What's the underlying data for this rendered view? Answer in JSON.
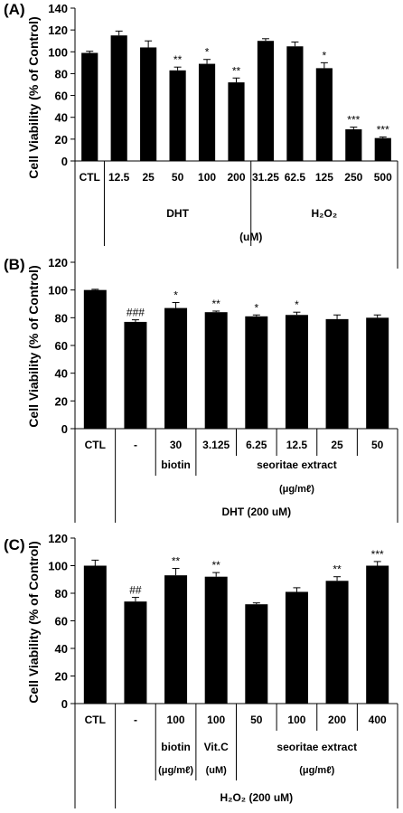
{
  "chart_data": [
    {
      "panel_label": "(A)",
      "type": "bar",
      "ylabel": "Cell Viability (% of Control)",
      "ylim": [
        0,
        140
      ],
      "yticks": [
        0,
        20,
        40,
        60,
        80,
        100,
        120,
        140
      ],
      "grid": false,
      "legend": "none",
      "categories": [
        "CTL",
        "12.5",
        "25",
        "50",
        "100",
        "200",
        "31.25",
        "62.5",
        "125",
        "250",
        "500"
      ],
      "values": [
        99,
        115,
        104,
        83,
        89,
        72,
        110,
        105,
        85,
        29,
        21
      ],
      "errors": [
        1.5,
        4,
        6,
        3,
        4,
        4,
        2,
        4,
        5,
        2,
        1
      ],
      "significance": [
        "",
        "",
        "",
        "**",
        "*",
        "**",
        "",
        "",
        "*",
        "***",
        "***"
      ],
      "groups": [
        {
          "label": "DHT",
          "start": 1,
          "end": 5
        },
        {
          "label": "H₂O₂",
          "start": 6,
          "end": 10
        }
      ],
      "unit_note": "(uM)"
    },
    {
      "panel_label": "(B)",
      "type": "bar",
      "ylabel": "Cell Viability (% of Control)",
      "ylim": [
        0,
        120
      ],
      "yticks": [
        0,
        20,
        40,
        60,
        80,
        100,
        120
      ],
      "grid": false,
      "legend": "none",
      "categories": [
        "CTL",
        "-",
        "30",
        "3.125",
        "6.25",
        "12.5",
        "25",
        "50"
      ],
      "values": [
        100,
        77,
        87,
        84,
        81,
        82,
        79,
        80
      ],
      "errors": [
        0.5,
        1.5,
        4,
        0.8,
        1,
        2,
        3,
        2
      ],
      "significance": [
        "",
        "###",
        "*",
        "**",
        "*",
        "*",
        "",
        ""
      ],
      "sublabels": [
        {
          "label": "biotin",
          "start": 2,
          "end": 2
        },
        {
          "label": "seoritae extract",
          "start": 3,
          "end": 7
        }
      ],
      "unit_note": "(μg/mℓ)",
      "treatment": "DHT (200 uM)"
    },
    {
      "panel_label": "(C)",
      "type": "bar",
      "ylabel": "Cell Viability (% of Control)",
      "ylim": [
        0,
        120
      ],
      "yticks": [
        0,
        20,
        40,
        60,
        80,
        100,
        120
      ],
      "grid": false,
      "legend": "none",
      "categories": [
        "CTL",
        "-",
        "100",
        "100",
        "50",
        "100",
        "200",
        "400"
      ],
      "values": [
        100,
        74,
        93,
        92,
        72,
        81,
        89,
        100
      ],
      "errors": [
        4,
        3,
        5,
        3,
        1,
        3,
        3,
        3
      ],
      "significance": [
        "",
        "##",
        "**",
        "**",
        "",
        "",
        "**",
        "***"
      ],
      "sublabels": [
        {
          "label": "biotin",
          "unit": "(μg/mℓ)",
          "start": 2,
          "end": 2
        },
        {
          "label": "Vit.C",
          "unit": "(uM)",
          "start": 3,
          "end": 3
        },
        {
          "label": "seoritae extract",
          "unit": "(μg/mℓ)",
          "start": 4,
          "end": 7
        }
      ],
      "treatment": "H₂O₂ (200 uM)"
    }
  ]
}
